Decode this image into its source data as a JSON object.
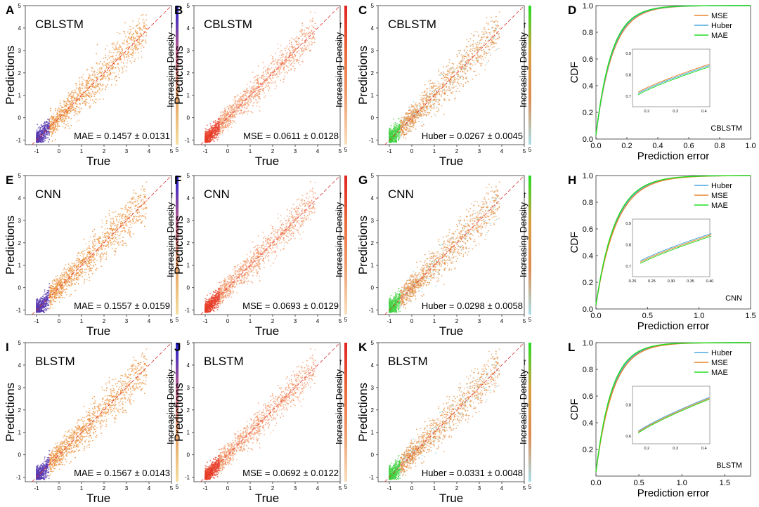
{
  "figure": {
    "row_models": [
      "CBLSTM",
      "CNN",
      "BLSTM"
    ],
    "colorbar_label": "Increasing Density →",
    "colors": {
      "blue": "#2020d0",
      "red": "#e02020",
      "green": "#22dd22",
      "orange": "#e8832a",
      "cdf_mse": "#e8832a",
      "cdf_huber": "#4aa8e0",
      "cdf_mae": "#22dd22"
    }
  },
  "chart_data": [
    {
      "panel": "A",
      "type": "scatter",
      "title": "CBLSTM",
      "xlabel": "True",
      "ylabel": "Predictions",
      "xlim": [
        -1.5,
        5
      ],
      "ylim": [
        -1.2,
        5
      ],
      "x_ticks": [
        -1,
        0,
        1,
        2,
        3,
        4,
        5
      ],
      "y_ticks": [
        -1,
        0,
        1,
        2,
        3,
        4,
        5
      ],
      "metric": "MAE = 0.1457 ± 0.0131",
      "colorbar": "blue",
      "colorbar_ticks": [
        0,
        5
      ]
    },
    {
      "panel": "B",
      "type": "scatter",
      "title": "CBLSTM",
      "xlabel": "True",
      "ylabel": "Predictions",
      "xlim": [
        -1.5,
        5
      ],
      "ylim": [
        -1.2,
        5
      ],
      "x_ticks": [
        -1,
        0,
        1,
        2,
        3,
        4,
        5
      ],
      "y_ticks": [
        -1,
        0,
        1,
        2,
        3,
        4,
        5
      ],
      "metric": "MSE = 0.0611 ± 0.0128",
      "colorbar": "red",
      "colorbar_ticks": [
        0,
        5
      ]
    },
    {
      "panel": "C",
      "type": "scatter",
      "title": "CBLSTM",
      "xlabel": "True",
      "ylabel": "Predictions",
      "xlim": [
        -1.5,
        5
      ],
      "ylim": [
        -1.2,
        5
      ],
      "x_ticks": [
        -1,
        0,
        1,
        2,
        3,
        4,
        5
      ],
      "y_ticks": [
        -1,
        0,
        1,
        2,
        3,
        4,
        5
      ],
      "metric": "Huber = 0.0267 ± 0.0045",
      "colorbar": "green",
      "colorbar_ticks": [
        0,
        5
      ]
    },
    {
      "panel": "D",
      "type": "line",
      "xlabel": "Prediction error",
      "ylabel": "CDF",
      "xlim": [
        0,
        1.0
      ],
      "ylim": [
        0,
        1.0
      ],
      "x_ticks": [
        "0.0",
        "0.2",
        "0.4",
        "0.6",
        "0.8",
        "1.0"
      ],
      "y_ticks": [
        "0.0",
        "0.2",
        "0.4",
        "0.6",
        "0.8",
        "1.0"
      ],
      "series": [
        {
          "name": "MSE",
          "color": "cdf_mse",
          "k": 9.2
        },
        {
          "name": "Huber",
          "color": "cdf_huber",
          "k": 9.6
        },
        {
          "name": "MAE",
          "color": "cdf_mae",
          "k": 9.9
        }
      ],
      "inset": {
        "x_ticks": [
          "0.2",
          "0.3",
          "0.4"
        ],
        "y_ticks": [
          "0.7",
          "0.8",
          "0.9"
        ],
        "xlim": [
          0.15,
          0.42
        ],
        "ylim": [
          0.65,
          0.92
        ]
      },
      "label": "CBLSTM"
    },
    {
      "panel": "E",
      "type": "scatter",
      "title": "CNN",
      "xlabel": "True",
      "ylabel": "Predictions",
      "xlim": [
        -1.5,
        5
      ],
      "ylim": [
        -1.2,
        5
      ],
      "x_ticks": [
        -1,
        0,
        1,
        2,
        3,
        4,
        5
      ],
      "y_ticks": [
        -1,
        0,
        1,
        2,
        3,
        4,
        5
      ],
      "metric": "MAE = 0.1557 ± 0.0159",
      "colorbar": "blue",
      "colorbar_ticks": [
        0,
        5
      ]
    },
    {
      "panel": "F",
      "type": "scatter",
      "title": "CNN",
      "xlabel": "True",
      "ylabel": "Predictions",
      "xlim": [
        -1.5,
        5
      ],
      "ylim": [
        -1.2,
        5
      ],
      "x_ticks": [
        -1,
        0,
        1,
        2,
        3,
        4,
        5
      ],
      "y_ticks": [
        -1,
        0,
        1,
        2,
        3,
        4,
        5
      ],
      "metric": "MSE = 0.0693 ± 0.0129",
      "colorbar": "red",
      "colorbar_ticks": [
        0,
        5
      ]
    },
    {
      "panel": "G",
      "type": "scatter",
      "title": "CNN",
      "xlabel": "True",
      "ylabel": "Predictions",
      "xlim": [
        -1.5,
        5
      ],
      "ylim": [
        -1.2,
        5
      ],
      "x_ticks": [
        -1,
        0,
        1,
        2,
        3,
        4,
        5
      ],
      "y_ticks": [
        -1,
        0,
        1,
        2,
        3,
        4,
        5
      ],
      "metric": "Huber = 0.0298 ± 0.0058",
      "colorbar": "green",
      "colorbar_ticks": [
        0,
        5
      ]
    },
    {
      "panel": "H",
      "type": "line",
      "xlabel": "Prediction error",
      "ylabel": "CDF",
      "xlim": [
        0,
        1.5
      ],
      "ylim": [
        0,
        1.0
      ],
      "x_ticks": [
        "0.0",
        "0.5",
        "1.0",
        "1.5"
      ],
      "y_ticks": [
        "0.0",
        "0.2",
        "0.4",
        "0.6",
        "0.8",
        "1.0"
      ],
      "series": [
        {
          "name": "Huber",
          "color": "cdf_huber",
          "k": 7.3
        },
        {
          "name": "MSE",
          "color": "cdf_mse",
          "k": 7.0
        },
        {
          "name": "MAE",
          "color": "cdf_mae",
          "k": 7.5
        }
      ],
      "inset": {
        "x_ticks": [
          "0.20",
          "0.25",
          "0.30",
          "0.35",
          "0.40"
        ],
        "y_ticks": [
          "0.7",
          "0.8",
          "0.9"
        ],
        "xlim": [
          0.2,
          0.4
        ],
        "ylim": [
          0.65,
          0.92
        ]
      },
      "label": "CNN"
    },
    {
      "panel": "I",
      "type": "scatter",
      "title": "BLSTM",
      "xlabel": "True",
      "ylabel": "Predictions",
      "xlim": [
        -1.5,
        5
      ],
      "ylim": [
        -1.2,
        5
      ],
      "x_ticks": [
        -1,
        0,
        1,
        2,
        3,
        4,
        5
      ],
      "y_ticks": [
        -1,
        0,
        1,
        2,
        3,
        4,
        5
      ],
      "metric": "MAE = 0.1567 ± 0.0143",
      "colorbar": "blue",
      "colorbar_ticks": [
        0,
        5
      ]
    },
    {
      "panel": "J",
      "type": "scatter",
      "title": "BLSTM",
      "xlabel": "True",
      "ylabel": "Predictions",
      "xlim": [
        -1.5,
        5
      ],
      "ylim": [
        -1.2,
        5
      ],
      "x_ticks": [
        -1,
        0,
        1,
        2,
        3,
        4,
        5
      ],
      "y_ticks": [
        -1,
        0,
        1,
        2,
        3,
        4,
        5
      ],
      "metric": "MSE = 0.0692 ± 0.0122",
      "colorbar": "red",
      "colorbar_ticks": [
        0,
        5
      ]
    },
    {
      "panel": "K",
      "type": "scatter",
      "title": "BLSTM",
      "xlabel": "True",
      "ylabel": "Predictions",
      "xlim": [
        -1.5,
        5
      ],
      "ylim": [
        -1.2,
        5
      ],
      "x_ticks": [
        -1,
        0,
        1,
        2,
        3,
        4,
        5
      ],
      "y_ticks": [
        -1,
        0,
        1,
        2,
        3,
        4,
        5
      ],
      "metric": "Huber = 0.0331 ± 0.0048",
      "colorbar": "green",
      "colorbar_ticks": [
        0,
        5
      ]
    },
    {
      "panel": "L",
      "type": "line",
      "xlabel": "Prediction error",
      "ylabel": "CDF",
      "xlim": [
        0,
        1.8
      ],
      "ylim": [
        0,
        1.0
      ],
      "x_ticks": [
        "0.0",
        "0.5",
        "1.0",
        "1.5"
      ],
      "y_ticks": [
        "0.2",
        "0.4",
        "0.6",
        "0.8",
        "1.0"
      ],
      "series": [
        {
          "name": "Huber",
          "color": "cdf_huber",
          "k": 7.3
        },
        {
          "name": "MSE",
          "color": "cdf_mse",
          "k": 7.0
        },
        {
          "name": "MAE",
          "color": "cdf_mae",
          "k": 7.6
        }
      ],
      "inset": {
        "x_ticks": [
          "0.2",
          "0.3",
          "0.4"
        ],
        "y_ticks": [
          "0.6",
          "0.8"
        ],
        "xlim": [
          0.15,
          0.42
        ],
        "ylim": [
          0.55,
          0.92
        ]
      },
      "label": "BLSTM"
    }
  ]
}
